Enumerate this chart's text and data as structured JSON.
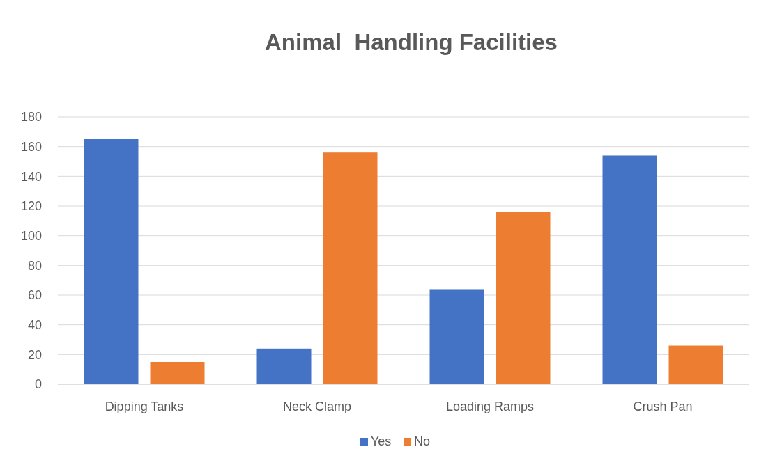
{
  "chart_data": {
    "type": "bar",
    "title": "Animal  Handling Facilities",
    "categories": [
      "Dipping Tanks",
      "Neck Clamp",
      "Loading Ramps",
      "Crush Pan"
    ],
    "series": [
      {
        "name": "Yes",
        "color": "#4472c4",
        "values": [
          165,
          24,
          64,
          154
        ]
      },
      {
        "name": "No",
        "color": "#ed7d31",
        "values": [
          15,
          156,
          116,
          26
        ]
      }
    ],
    "ylim": [
      0,
      180
    ],
    "yticks": [
      0,
      20,
      40,
      60,
      80,
      100,
      120,
      140,
      160,
      180
    ],
    "grid": "y",
    "legend": "bottom"
  }
}
